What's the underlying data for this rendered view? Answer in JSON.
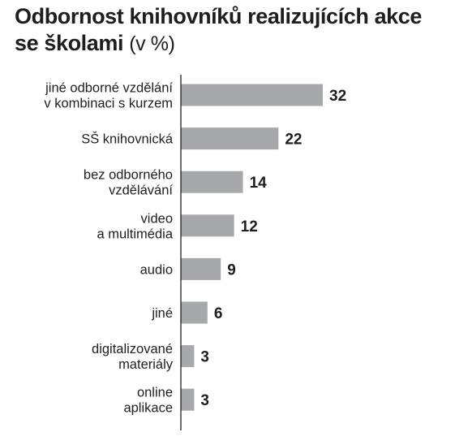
{
  "title": {
    "main": "Odbornost knihovníků realizujících akce se školami",
    "unit": "(v %)"
  },
  "chart_data": {
    "type": "bar",
    "orientation": "horizontal",
    "title": "Odbornost knihovníků realizujících akce se školami (v %)",
    "xlabel": "",
    "ylabel": "",
    "categories": [
      [
        "jiné odborné vzdělání",
        "v kombinaci s kurzem"
      ],
      [
        "SŠ knihovnická"
      ],
      [
        "bez odborného",
        "vzdělávání"
      ],
      [
        "video",
        "a multimédia"
      ],
      [
        "audio"
      ],
      [
        "jiné"
      ],
      [
        "digitalizované",
        "materiály"
      ],
      [
        "online",
        "aplikace"
      ]
    ],
    "values": [
      32,
      22,
      14,
      12,
      9,
      6,
      3,
      3
    ],
    "value_labels": [
      "32",
      "22",
      "14",
      "12",
      "9",
      "6",
      "3",
      "3"
    ],
    "xlim": [
      0,
      32
    ],
    "grid": false,
    "legend": "none",
    "bar_color": "#a6a8ab",
    "axis_color": "#1e1e1e",
    "text_color": "#1e1e1e"
  }
}
